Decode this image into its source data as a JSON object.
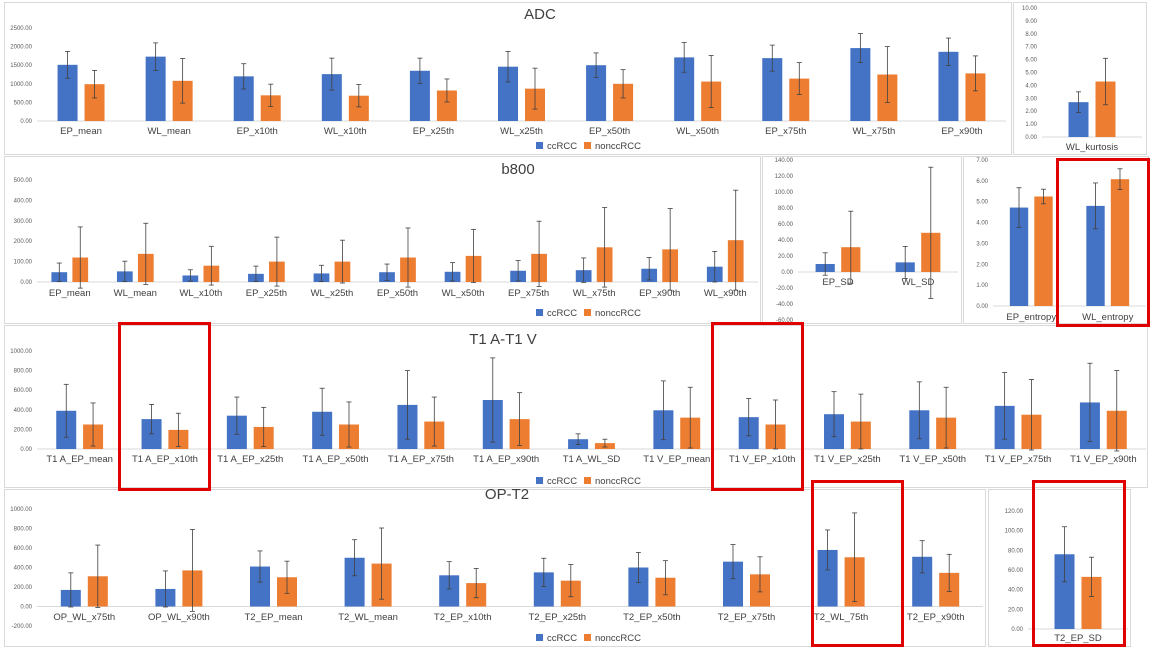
{
  "colors": {
    "cc": "#4472c4",
    "noncc": "#ed7d31",
    "highlight": "#e00000",
    "axis": "#d9d9d9",
    "grid": "#595959"
  },
  "legend": {
    "a": "ccRCC",
    "b": "nonccRCC"
  },
  "chart_data": [
    {
      "id": "adc",
      "type": "bar",
      "title": "ADC",
      "ylim": [
        0,
        2500
      ],
      "ticks": [
        0,
        500,
        1000,
        1500,
        2000,
        2500
      ],
      "fmt": 2,
      "legend": "bottom",
      "categories": [
        "EP_mean",
        "WL_mean",
        "EP_x10th",
        "WL_x10th",
        "EP_x25th",
        "WL_x25th",
        "EP_x50th",
        "WL_x50th",
        "EP_x75th",
        "WL_x75th",
        "EP_x90th"
      ],
      "series": [
        {
          "name": "ccRCC",
          "values": [
            1510,
            1730,
            1200,
            1260,
            1350,
            1460,
            1500,
            1710,
            1690,
            1960,
            1860
          ],
          "errors": [
            360,
            370,
            340,
            430,
            340,
            410,
            330,
            400,
            350,
            390,
            370
          ]
        },
        {
          "name": "nonccRCC",
          "values": [
            990,
            1080,
            690,
            680,
            820,
            870,
            1000,
            1060,
            1140,
            1250,
            1280
          ],
          "errors": [
            370,
            600,
            300,
            300,
            310,
            550,
            380,
            700,
            430,
            750,
            470
          ]
        }
      ]
    },
    {
      "id": "kurt",
      "type": "bar",
      "title": "",
      "ylim": [
        0,
        10
      ],
      "ticks": [
        0,
        1,
        2,
        3,
        4,
        5,
        6,
        7,
        8,
        9,
        10
      ],
      "fmt": 2,
      "legend": "none",
      "categories": [
        "WL_kurtosis"
      ],
      "series": [
        {
          "name": "ccRCC",
          "values": [
            2.7
          ],
          "errors": [
            0.8
          ]
        },
        {
          "name": "nonccRCC",
          "values": [
            4.3
          ],
          "errors": [
            1.8
          ]
        }
      ]
    },
    {
      "id": "b800",
      "type": "bar",
      "title": "b800",
      "ylim": [
        0,
        500
      ],
      "ticks": [
        0,
        100,
        200,
        300,
        400,
        500
      ],
      "fmt": 2,
      "legend": "bottom",
      "categories": [
        "EP_mean",
        "WL_mean",
        "WL_x10th",
        "EP_x25th",
        "WL_x25th",
        "EP_x50th",
        "WL_x50th",
        "EP_x75th",
        "WL_x75th",
        "EP_x90th",
        "WL_x90th"
      ],
      "series": [
        {
          "name": "ccRCC",
          "values": [
            48,
            52,
            32,
            40,
            42,
            48,
            50,
            55,
            58,
            65,
            75
          ],
          "errors": [
            45,
            50,
            28,
            38,
            40,
            40,
            45,
            50,
            60,
            55,
            75
          ]
        },
        {
          "name": "nonccRCC",
          "values": [
            120,
            138,
            80,
            100,
            100,
            120,
            128,
            138,
            170,
            160,
            205
          ],
          "errors": [
            150,
            150,
            95,
            120,
            105,
            145,
            130,
            160,
            195,
            200,
            245
          ]
        }
      ]
    },
    {
      "id": "sd",
      "type": "bar",
      "title": "",
      "ylim": [
        -60,
        140
      ],
      "ticks": [
        -60,
        -40,
        -20,
        0,
        20,
        40,
        60,
        80,
        100,
        120,
        140
      ],
      "fmt": 2,
      "legend": "none",
      "categories": [
        "EP_SD",
        "WL_SD"
      ],
      "series": [
        {
          "name": "ccRCC",
          "values": [
            10,
            12
          ],
          "errors": [
            14,
            20
          ]
        },
        {
          "name": "nonccRCC",
          "values": [
            31,
            49
          ],
          "errors": [
            45,
            82
          ]
        }
      ]
    },
    {
      "id": "ent",
      "type": "bar",
      "title": "",
      "ylim": [
        0,
        7
      ],
      "ticks": [
        0,
        1,
        2,
        3,
        4,
        5,
        6,
        7
      ],
      "fmt": 2,
      "legend": "none",
      "categories": [
        "EP_entropy",
        "WL_entropy"
      ],
      "series": [
        {
          "name": "ccRCC",
          "values": [
            4.72,
            4.8
          ],
          "errors": [
            0.95,
            1.1
          ]
        },
        {
          "name": "nonccRCC",
          "values": [
            5.25,
            6.08
          ],
          "errors": [
            0.35,
            0.5
          ]
        }
      ]
    },
    {
      "id": "t1",
      "type": "bar",
      "title": "T1 A-T1 V",
      "ylim": [
        0,
        1000
      ],
      "ticks": [
        0,
        200,
        400,
        600,
        800,
        1000
      ],
      "fmt": 2,
      "legend": "bottom",
      "categories": [
        "T1 A_EP_mean",
        "T1 A_EP_x10th",
        "T1 A_EP_x25th",
        "T1 A_EP_x50th",
        "T1 A_EP_x75th",
        "T1 A_EP_x90th",
        "T1 A_WL_SD",
        "T1 V_EP_mean",
        "T1 V_EP_x10th",
        "T1 V_EP_x25th",
        "T1 V_EP_x50th",
        "T1 V_EP_x75th",
        "T1 V_EP_x90th"
      ],
      "series": [
        {
          "name": "ccRCC",
          "values": [
            390,
            305,
            340,
            380,
            450,
            500,
            100,
            395,
            325,
            355,
            395,
            440,
            475
          ],
          "errors": [
            270,
            150,
            190,
            240,
            350,
            430,
            55,
            300,
            190,
            230,
            290,
            340,
            400
          ]
        },
        {
          "name": "nonccRCC",
          "values": [
            250,
            195,
            225,
            250,
            280,
            305,
            60,
            320,
            250,
            280,
            320,
            350,
            390
          ],
          "errors": [
            220,
            170,
            200,
            230,
            250,
            270,
            40,
            310,
            250,
            280,
            310,
            360,
            410
          ]
        }
      ]
    },
    {
      "id": "op",
      "type": "bar",
      "title": "OP-T2",
      "ylim": [
        -200,
        1000
      ],
      "ticks": [
        -200,
        0,
        200,
        400,
        600,
        800,
        1000
      ],
      "fmt": 2,
      "legend": "bottom",
      "categories": [
        "OP_WL_x75th",
        "OP_WL_x90th",
        "T2_EP_mean",
        "T2_WL_mean",
        "T2_EP_x10th",
        "T2_EP_x25th",
        "T2_EP_x50th",
        "T2_EP_x75th",
        "T2_WL_75th",
        "T2_EP_x90th"
      ],
      "series": [
        {
          "name": "ccRCC",
          "values": [
            170,
            180,
            410,
            500,
            320,
            350,
            400,
            460,
            580,
            510
          ],
          "errors": [
            175,
            185,
            160,
            185,
            140,
            145,
            155,
            175,
            205,
            165
          ]
        },
        {
          "name": "nonccRCC",
          "values": [
            310,
            370,
            300,
            440,
            240,
            265,
            295,
            330,
            505,
            345
          ],
          "errors": [
            320,
            420,
            165,
            365,
            150,
            165,
            175,
            180,
            455,
            190
          ]
        }
      ]
    },
    {
      "id": "t2sd",
      "type": "bar",
      "title": "",
      "ylim": [
        0,
        120
      ],
      "ticks": [
        0,
        20,
        40,
        60,
        80,
        100,
        120
      ],
      "fmt": 2,
      "legend": "none",
      "categories": [
        "T2_EP_SD"
      ],
      "series": [
        {
          "name": "ccRCC",
          "values": [
            76
          ],
          "errors": [
            28
          ]
        },
        {
          "name": "nonccRCC",
          "values": [
            53
          ],
          "errors": [
            20
          ]
        }
      ]
    }
  ]
}
